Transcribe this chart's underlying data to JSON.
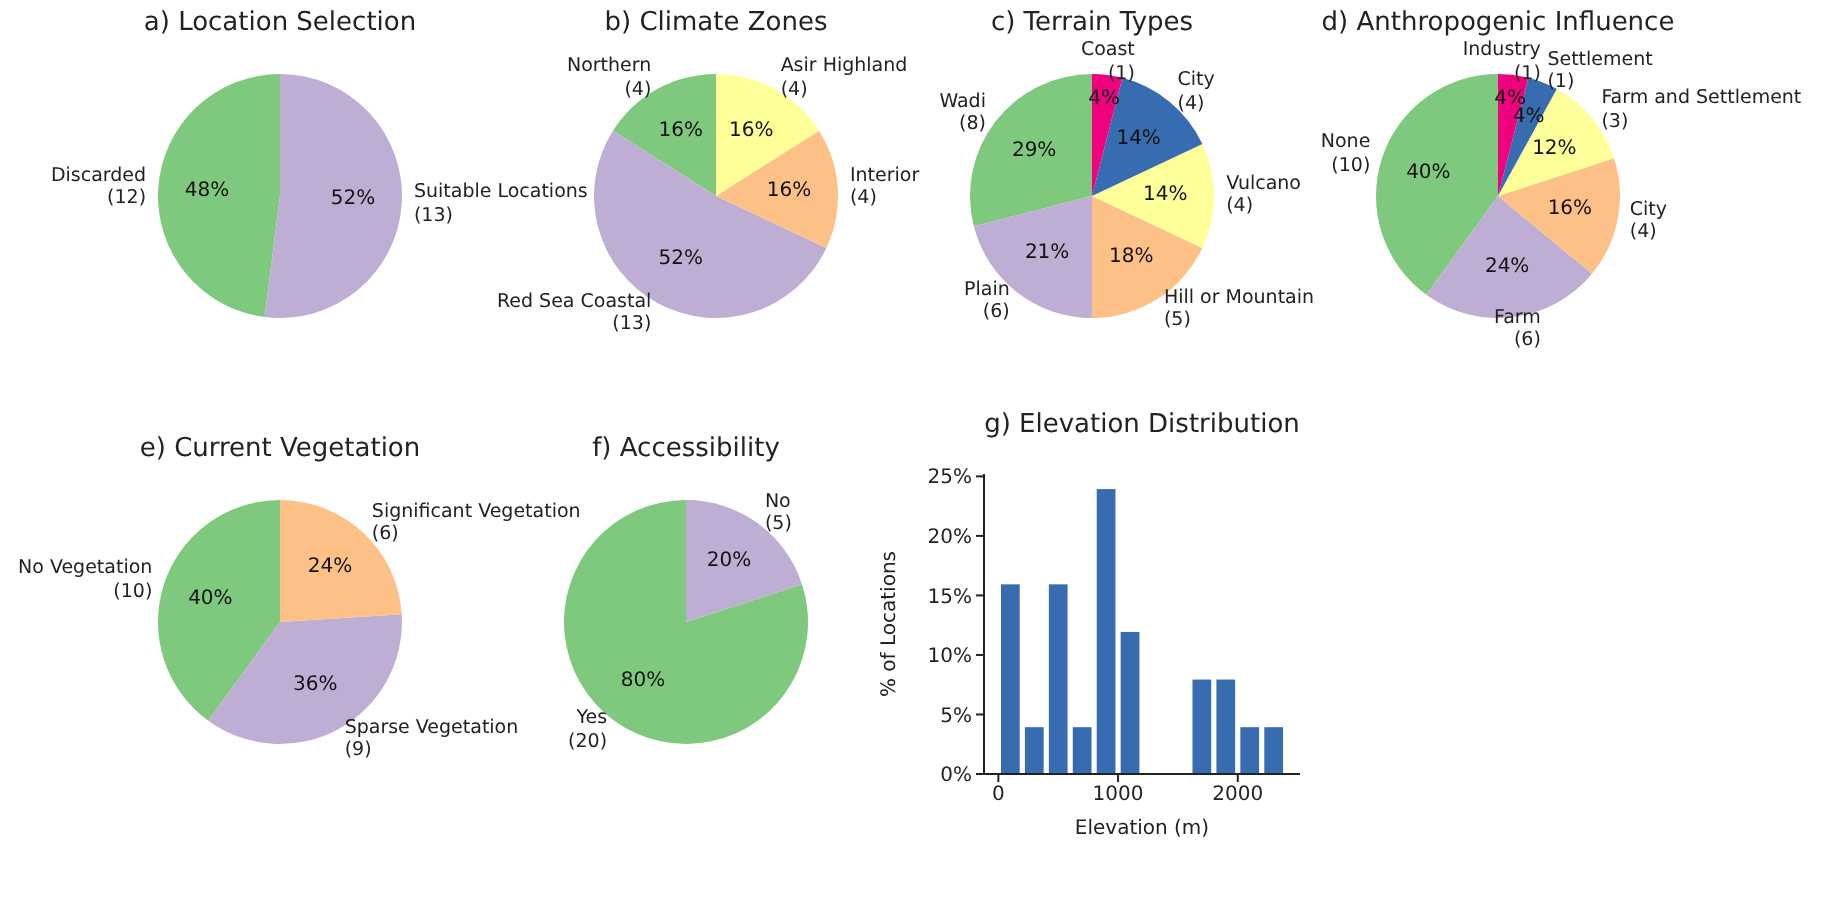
{
  "chart_data": [
    {
      "type": "pie",
      "title": "a) Location Selection",
      "categories": [
        "Discarded\n(12)",
        "Suitable Locations\n(13)"
      ],
      "values": [
        48,
        52
      ],
      "colors": [
        "#7fc97f",
        "#beaed4"
      ],
      "value_labels": [
        "48%",
        "52%"
      ]
    },
    {
      "type": "pie",
      "title": "b) Climate Zones",
      "categories": [
        "Northern\n(4)",
        "Red Sea Coastal\n(13)",
        "Interior\n(4)",
        "Asir Highland\n(4)"
      ],
      "values": [
        16,
        52,
        16,
        16
      ],
      "colors": [
        "#7fc97f",
        "#beaed4",
        "#fdc086",
        "#ffff99"
      ],
      "value_labels": [
        "16%",
        "52%",
        "16%",
        "16%"
      ]
    },
    {
      "type": "pie",
      "title": "c) Terrain Types",
      "categories": [
        "Wadi\n(8)",
        "Plain\n(6)",
        "Hill or Mountain\n(5)",
        "Vulcano\n(4)",
        "City\n(4)",
        "Coast\n(1)"
      ],
      "values": [
        29,
        21,
        18,
        14,
        14,
        4
      ],
      "colors": [
        "#7fc97f",
        "#beaed4",
        "#fdc086",
        "#ffff99",
        "#386cb0",
        "#f0027f"
      ],
      "value_labels": [
        "29%",
        "21%",
        "18%",
        "14%",
        "14%",
        "4%"
      ]
    },
    {
      "type": "pie",
      "title": "d) Anthropogenic Influence",
      "categories": [
        "None\n(10)",
        "Farm\n(6)",
        "City\n(4)",
        "Farm and Settlement\n(3)",
        "Settlement\n(1)",
        "Industry\n(1)"
      ],
      "values": [
        40,
        24,
        16,
        12,
        4,
        4
      ],
      "colors": [
        "#7fc97f",
        "#beaed4",
        "#fdc086",
        "#ffff99",
        "#386cb0",
        "#f0027f"
      ],
      "value_labels": [
        "40%",
        "24%",
        "16%",
        "12%",
        "4%",
        "4%"
      ]
    },
    {
      "type": "pie",
      "title": "e) Current Vegetation",
      "categories": [
        "No Vegetation\n(10)",
        "Sparse Vegetation\n(9)",
        "Significant Vegetation\n(6)"
      ],
      "values": [
        40,
        36,
        24
      ],
      "colors": [
        "#7fc97f",
        "#beaed4",
        "#fdc086"
      ],
      "value_labels": [
        "40%",
        "36%",
        "24%"
      ]
    },
    {
      "type": "pie",
      "title": "f) Accessibility",
      "categories": [
        "Yes\n(20)",
        "No\n(5)"
      ],
      "values": [
        80,
        20
      ],
      "colors": [
        "#7fc97f",
        "#beaed4"
      ],
      "value_labels": [
        "80%",
        "20%"
      ]
    },
    {
      "type": "histogram",
      "title": "g) Elevation Distribution",
      "xlabel": "Elevation (m)",
      "ylabel": "% of Locations",
      "bins": [
        0,
        200,
        400,
        600,
        800,
        1000,
        1200,
        1400,
        1600,
        1800,
        2000,
        2200,
        2400
      ],
      "values": [
        16,
        4,
        16,
        4,
        24,
        12,
        0,
        0,
        8,
        8,
        4,
        4
      ],
      "color": "#386cb0",
      "xlim": [
        -120,
        2520
      ],
      "xticks": [
        0,
        1000,
        2000
      ],
      "ylim": [
        0,
        25.2
      ],
      "yticks": [
        {
          "value": 0,
          "label": "0%"
        },
        {
          "value": 5,
          "label": "5%"
        },
        {
          "value": 10,
          "label": "10%"
        },
        {
          "value": 15,
          "label": "15%"
        },
        {
          "value": 20,
          "label": "20%"
        },
        {
          "value": 25,
          "label": "25%"
        }
      ]
    }
  ]
}
